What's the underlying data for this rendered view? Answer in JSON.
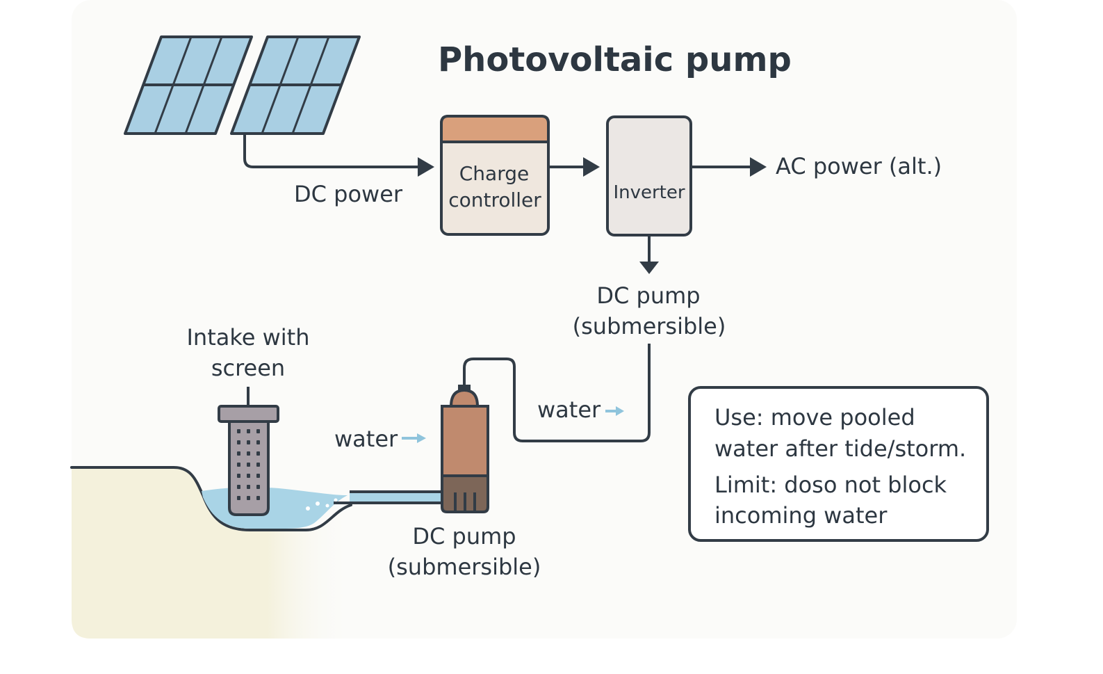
{
  "title": "Photovoltaic pump",
  "labels": {
    "dc_power": "DC power",
    "charge_controller_line1": "Charge",
    "charge_controller_line2": "controller",
    "inverter": "Inverter",
    "ac_power": "AC power (alt.)",
    "dc_pump_top_line1": "DC pump",
    "dc_pump_top_line2": "(submersible)",
    "intake_line1": "Intake with",
    "intake_line2": "screen",
    "water_left": "water",
    "water_right": "water",
    "dc_pump_bottom_line1": "DC pump",
    "dc_pump_bottom_line2": "(submersible)"
  },
  "note": {
    "use_line1": "Use: move pooled",
    "use_line2": "water after tide/storm.",
    "limit_line1": "Limit: doso not block",
    "limit_line2": "incoming water"
  },
  "colors": {
    "stroke": "#323c46",
    "panel_fill": "#a9cfe3",
    "controller_top": "#d9a07c",
    "controller_body": "#efe7de",
    "inverter_body": "#ebe7e4",
    "pump_body": "#c08a6e",
    "pump_base": "#7d6658",
    "water": "#a9d4e6",
    "water_arrow": "#8fc4dc",
    "ground": "#f4f1dc",
    "background": "#fbfbf9"
  }
}
